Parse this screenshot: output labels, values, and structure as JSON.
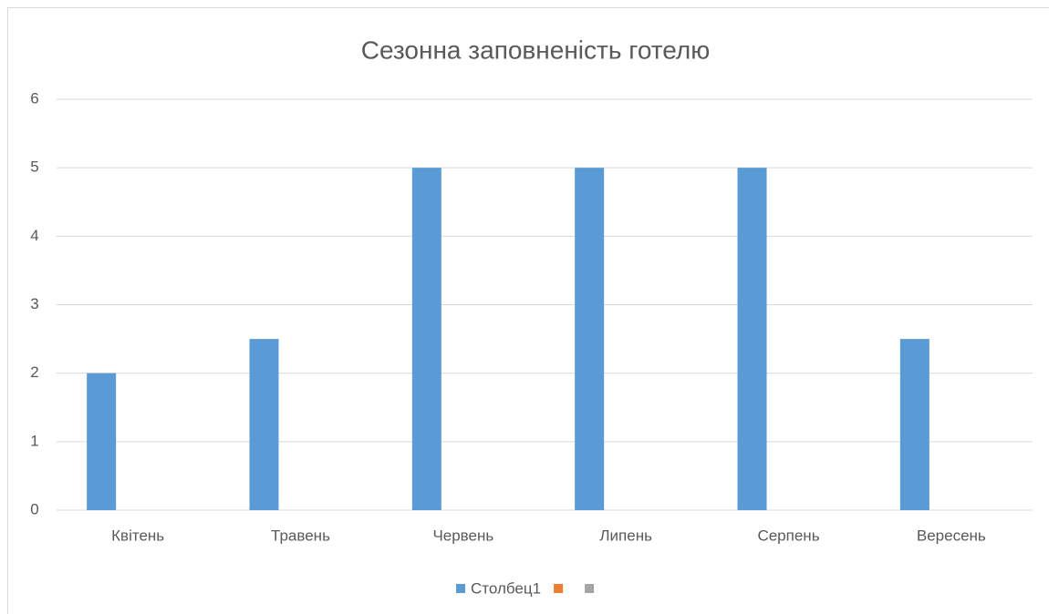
{
  "chart_data": {
    "type": "bar",
    "title": "Сезонна заповненість готелю",
    "categories": [
      "Квітень",
      "Травень",
      "Червень",
      "Липень",
      "Серпень",
      "Вересень"
    ],
    "series": [
      {
        "name": "Столбец1",
        "color": "#5b9bd5",
        "values": [
          2,
          2.5,
          5,
          5,
          5,
          2.5
        ]
      },
      {
        "color": "#ed7d31",
        "values": [
          null,
          null,
          null,
          null,
          null,
          null
        ]
      },
      {
        "color": "#a5a5a5",
        "values": [
          null,
          null,
          null,
          null,
          null,
          null
        ]
      }
    ],
    "ylim": [
      0,
      6
    ],
    "yticks": [
      0,
      1,
      2,
      3,
      4,
      5,
      6
    ],
    "grid": true,
    "legend": "bottom"
  }
}
